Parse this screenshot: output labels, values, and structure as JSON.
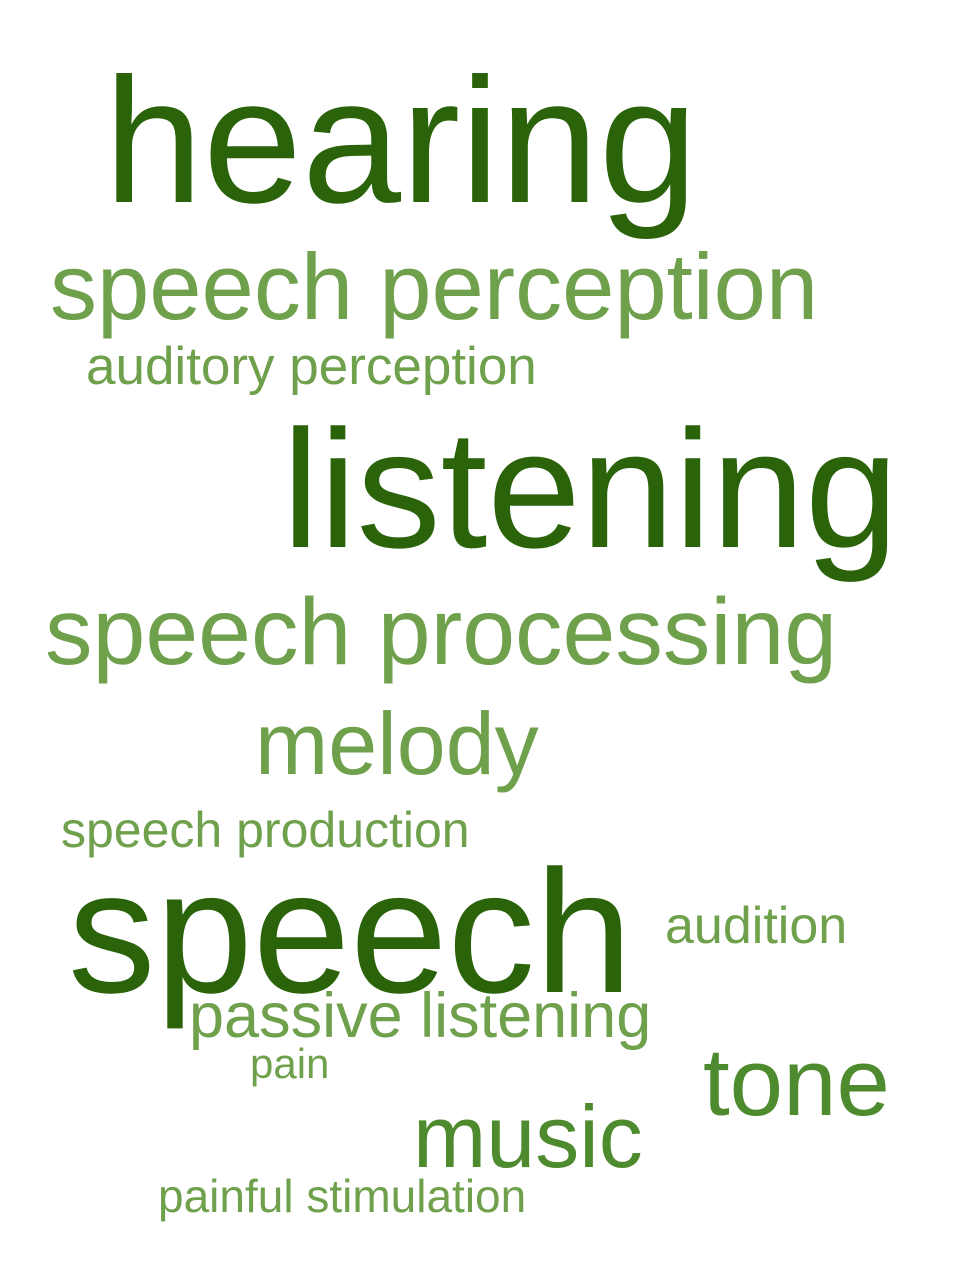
{
  "colors": {
    "dark": "#2a6309",
    "medium": "#4e8a2e",
    "light": "#6fa04c"
  },
  "words": {
    "hearing": "hearing",
    "speech_perception": "speech perception",
    "auditory_perception": "auditory perception",
    "listening": "listening",
    "speech_processing": "speech processing",
    "melody": "melody",
    "speech_production": "speech production",
    "speech": "speech",
    "audition": "audition",
    "passive_listening": "passive listening",
    "pain": "pain",
    "tone": "tone",
    "music": "music",
    "painful_stimulation": "painful stimulation"
  },
  "word_tones": {
    "hearing": "dark",
    "speech_perception": "light",
    "auditory_perception": "light",
    "listening": "dark",
    "speech_processing": "light",
    "melody": "light",
    "speech_production": "light",
    "speech": "dark",
    "audition": "light",
    "passive_listening": "light",
    "pain": "light",
    "tone": "medium",
    "music": "medium",
    "painful_stimulation": "light"
  }
}
